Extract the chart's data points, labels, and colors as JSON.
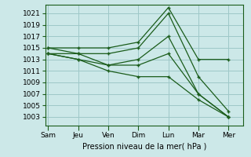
{
  "xlabel": "Pression niveau de la mer( hPa )",
  "background_color": "#cce8e8",
  "grid_color": "#9ec8c8",
  "line_color": "#1a5c1a",
  "tick_labels": [
    "Sam",
    "Jeu",
    "Ven",
    "Dim",
    "Lun",
    "Mar",
    "Mer"
  ],
  "x_positions": [
    0,
    1,
    2,
    3,
    4,
    5,
    6
  ],
  "yticks": [
    1003,
    1005,
    1007,
    1009,
    1011,
    1013,
    1015,
    1017,
    1019,
    1021
  ],
  "ylim": [
    1001.5,
    1022.5
  ],
  "xlim": [
    -0.1,
    6.5
  ],
  "lines": [
    [
      1015,
      1015,
      1015,
      1016,
      1022,
      1013,
      1013
    ],
    [
      1015,
      1014,
      1014,
      1015,
      1021,
      1010,
      1004
    ],
    [
      1014,
      1014,
      1012,
      1013,
      1017,
      1007,
      1003
    ],
    [
      1014,
      1013,
      1012,
      1012,
      1014,
      1007,
      1003
    ],
    [
      1014,
      1013,
      1011,
      1010,
      1010,
      1006,
      1003
    ]
  ]
}
